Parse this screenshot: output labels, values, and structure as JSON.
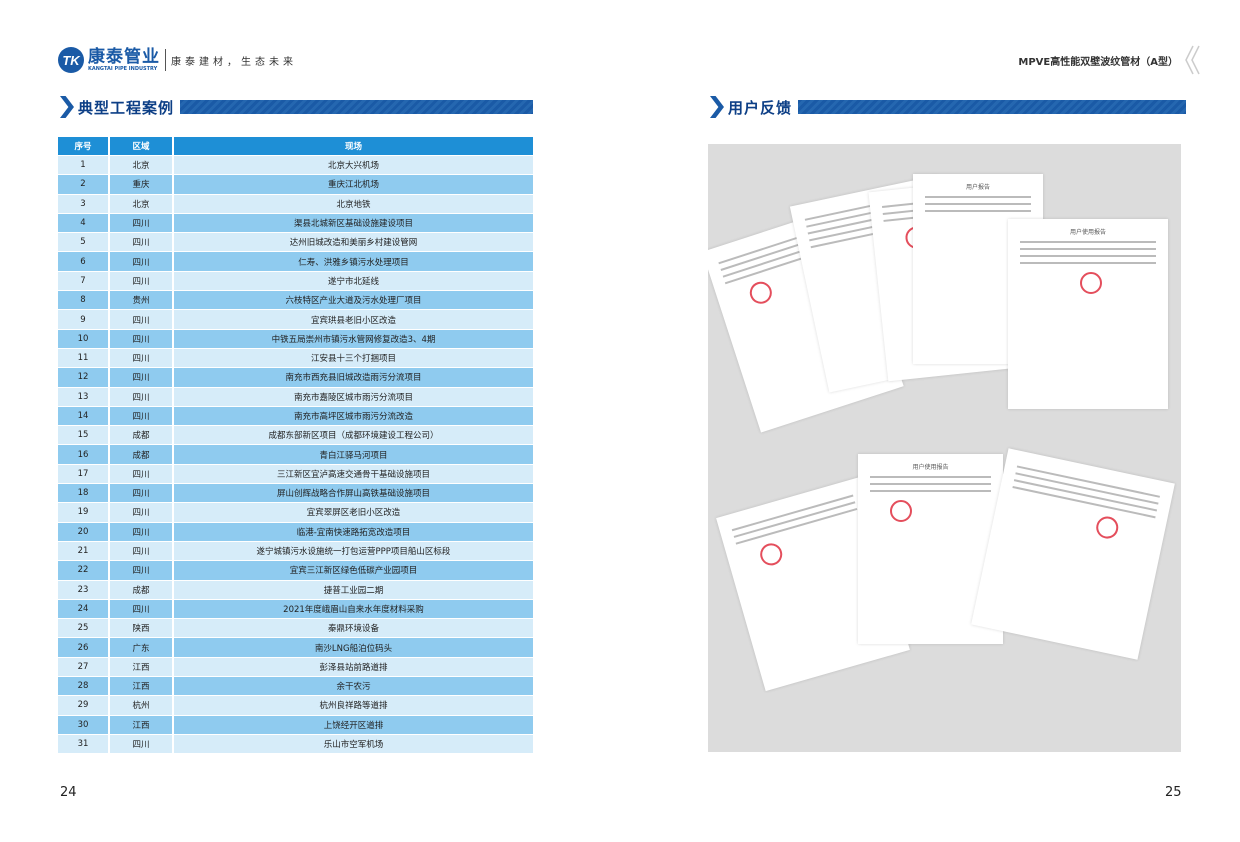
{
  "header": {
    "logo_mark": "TK",
    "logo_cn": "康泰管业",
    "logo_en": "KANGTAI PIPE INDUSTRY",
    "slogan": "康泰建材，生态未来",
    "doc_title": "MPVE高性能双壁波纹管材（A型）"
  },
  "left": {
    "section_title": "典型工程案例",
    "table": {
      "headers": [
        "序号",
        "区域",
        "现场"
      ],
      "rows": [
        [
          "1",
          "北京",
          "北京大兴机场"
        ],
        [
          "2",
          "重庆",
          "重庆江北机场"
        ],
        [
          "3",
          "北京",
          "北京地铁"
        ],
        [
          "4",
          "四川",
          "渠县北城新区基础设施建设项目"
        ],
        [
          "5",
          "四川",
          "达州旧城改造和美丽乡村建设管网"
        ],
        [
          "6",
          "四川",
          "仁寿、洪雅乡镇污水处理项目"
        ],
        [
          "7",
          "四川",
          "遂宁市北延线"
        ],
        [
          "8",
          "贵州",
          "六枝特区产业大道及污水处理厂项目"
        ],
        [
          "9",
          "四川",
          "宜宾珙县老旧小区改造"
        ],
        [
          "10",
          "四川",
          "中铁五局崇州市镇污水管网修复改造3、4期"
        ],
        [
          "11",
          "四川",
          "江安县十三个打捆项目"
        ],
        [
          "12",
          "四川",
          "南充市西充县旧城改造雨污分流项目"
        ],
        [
          "13",
          "四川",
          "南充市嘉陵区城市雨污分流项目"
        ],
        [
          "14",
          "四川",
          "南充市高坪区城市雨污分流改造"
        ],
        [
          "15",
          "成都",
          "成都东部新区项目（成都环境建设工程公司）"
        ],
        [
          "16",
          "成都",
          "青白江驿马河项目"
        ],
        [
          "17",
          "四川",
          "三江新区宜泸高速交通骨干基础设施项目"
        ],
        [
          "18",
          "四川",
          "屏山创辉战略合作屏山高铁基础设施项目"
        ],
        [
          "19",
          "四川",
          "宜宾翠屏区老旧小区改造"
        ],
        [
          "20",
          "四川",
          "临港-宜南快速路拓宽改造项目"
        ],
        [
          "21",
          "四川",
          "遂宁城镇污水设施统一打包运营PPP项目船山区标段"
        ],
        [
          "22",
          "四川",
          "宜宾三江新区绿色低碳产业园项目"
        ],
        [
          "23",
          "成都",
          "捷普工业园二期"
        ],
        [
          "24",
          "四川",
          "2021年度峨眉山自来水年度材料采购"
        ],
        [
          "25",
          "陕西",
          "秦鼎环境设备"
        ],
        [
          "26",
          "广东",
          "南沙LNG船泊位码头"
        ],
        [
          "27",
          "江西",
          "彭泽县站前路道排"
        ],
        [
          "28",
          "江西",
          "余干农污"
        ],
        [
          "29",
          "杭州",
          "杭州良祥路等道排"
        ],
        [
          "30",
          "江西",
          "上饶经开区道排"
        ],
        [
          "31",
          "四川",
          "乐山市空军机场"
        ]
      ]
    },
    "page_number": "24"
  },
  "right": {
    "section_title": "用户反馈",
    "papers": [
      {
        "title": "用户使用报告"
      },
      {
        "title": "用户报告"
      },
      {
        "title": "用户使用报告"
      }
    ],
    "page_number": "25"
  }
}
